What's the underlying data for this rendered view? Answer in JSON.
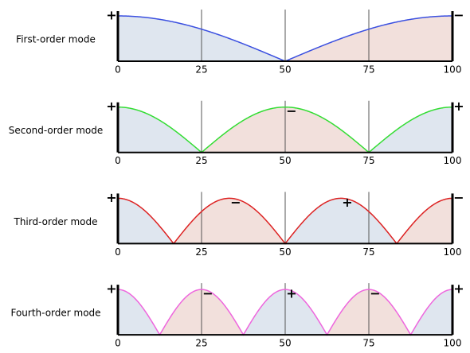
{
  "panels": [
    {
      "label": "First-order mode",
      "color": "#3a4fe0",
      "signs": [
        "+",
        "−"
      ],
      "xticks": [
        0,
        25,
        50,
        75,
        100
      ]
    },
    {
      "label": "Second-order mode",
      "color": "#33dd33",
      "signs": [
        "+",
        "−",
        "+"
      ],
      "xticks": [
        0,
        25,
        50,
        75,
        100
      ]
    },
    {
      "label": "Third-order mode",
      "color": "#dd2222",
      "signs": [
        "+",
        "−",
        "+",
        "−"
      ],
      "xticks": [
        0,
        25,
        50,
        75,
        100
      ]
    },
    {
      "label": "Fourth-order mode",
      "color": "#ee66dd",
      "signs": [
        "+",
        "−",
        "+",
        "−",
        "+"
      ],
      "xticks": [
        0,
        25,
        50,
        75,
        100
      ]
    }
  ]
}
